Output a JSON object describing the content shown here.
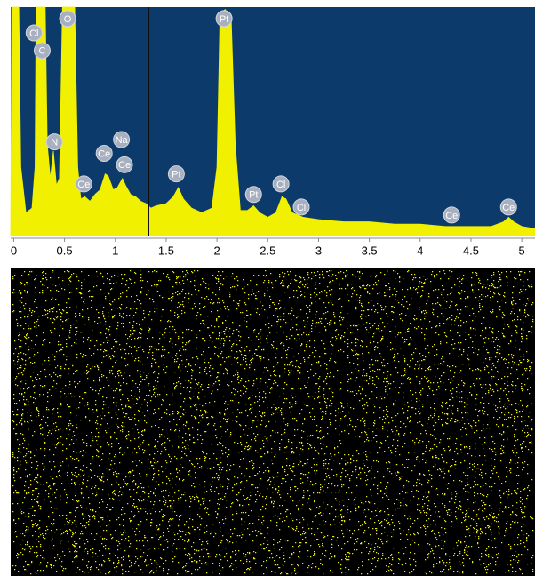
{
  "chart_data": {
    "type": "area",
    "color": "#f0f000",
    "background": "#0b3a6b",
    "xlim": [
      -0.03,
      5.13
    ],
    "ylim": [
      0,
      100
    ],
    "xticks": [
      0,
      0.5,
      1,
      1.5,
      2,
      2.5,
      3,
      3.5,
      4,
      4.5,
      5
    ],
    "cursor": 1.33,
    "x": [
      -0.03,
      -0.02,
      0.05,
      0.07,
      0.12,
      0.18,
      0.21,
      0.22,
      0.31,
      0.33,
      0.36,
      0.39,
      0.42,
      0.45,
      0.48,
      0.6,
      0.63,
      0.66,
      0.7,
      0.75,
      0.8,
      0.85,
      0.9,
      0.93,
      0.98,
      1.02,
      1.07,
      1.1,
      1.15,
      1.2,
      1.25,
      1.3,
      1.35,
      1.4,
      1.5,
      1.57,
      1.62,
      1.67,
      1.75,
      1.85,
      1.95,
      2.0,
      2.03,
      2.08,
      2.14,
      2.18,
      2.23,
      2.3,
      2.36,
      2.42,
      2.5,
      2.58,
      2.64,
      2.68,
      2.74,
      2.85,
      3.0,
      3.25,
      3.5,
      3.75,
      4.0,
      4.25,
      4.5,
      4.7,
      4.82,
      4.87,
      4.92,
      5.0,
      5.13
    ],
    "values": [
      2,
      100,
      100,
      30,
      10,
      12,
      30,
      100,
      100,
      40,
      25,
      37,
      22,
      25,
      100,
      100,
      30,
      16,
      17,
      15,
      18,
      20,
      27,
      26,
      20,
      21,
      25,
      22,
      18,
      17,
      15,
      14,
      12,
      13,
      14,
      17,
      21,
      16,
      12,
      10,
      12,
      30,
      97,
      99,
      95,
      40,
      11,
      11,
      13,
      10,
      8,
      10,
      17,
      16,
      10,
      8,
      7,
      6,
      6,
      5,
      5,
      4,
      4,
      4,
      6,
      8,
      6,
      4,
      3
    ],
    "annotations": [
      {
        "text": "Cl",
        "x": 0.2,
        "y": 88.7
      },
      {
        "text": "C",
        "x": 0.28,
        "y": 81
      },
      {
        "text": "O",
        "x": 0.53,
        "y": 95
      },
      {
        "text": "N",
        "x": 0.4,
        "y": 41
      },
      {
        "text": "Ce",
        "x": 0.69,
        "y": 22.6
      },
      {
        "text": "Ce",
        "x": 0.89,
        "y": 36
      },
      {
        "text": "Na",
        "x": 1.06,
        "y": 42
      },
      {
        "text": "Ce",
        "x": 1.09,
        "y": 31
      },
      {
        "text": "Pt",
        "x": 1.6,
        "y": 27
      },
      {
        "text": "Pt",
        "x": 2.07,
        "y": 95
      },
      {
        "text": "Pt",
        "x": 2.36,
        "y": 18
      },
      {
        "text": "Cl",
        "x": 2.63,
        "y": 22.6
      },
      {
        "text": "Cl",
        "x": 2.83,
        "y": 12.5
      },
      {
        "text": "Ce",
        "x": 4.31,
        "y": 9
      },
      {
        "text": "Ce",
        "x": 4.87,
        "y": 12.5
      }
    ]
  }
}
